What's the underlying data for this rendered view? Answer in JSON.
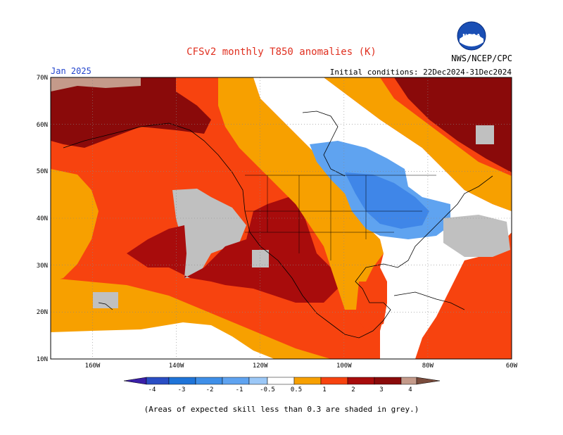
{
  "header": {
    "title": "CFSv2 monthly T850 anomalies (K)",
    "month": "Jan 2025",
    "initial_conditions": "Initial conditions: 22Dec2024-31Dec2024",
    "agency": "NWS/NCEP/CPC",
    "logo_text": "NOAA"
  },
  "map": {
    "lat_labels": [
      "70N",
      "60N",
      "50N",
      "40N",
      "30N",
      "20N",
      "10N"
    ],
    "lon_labels": [
      "160W",
      "140W",
      "120W",
      "100W",
      "80W",
      "60W"
    ],
    "lat_range": [
      10,
      70
    ],
    "lon_range": [
      -170,
      -60
    ],
    "gridlines": "dotted"
  },
  "colorbar": {
    "labels": [
      "-4",
      "-3",
      "-2",
      "-1",
      "-0.5",
      "0.5",
      "1",
      "2",
      "3",
      "4"
    ],
    "colors": [
      "#3a1fa8",
      "#1f5ccc",
      "#2f8ce6",
      "#5ea8f2",
      "#9cc8f7",
      "#ffffff",
      "#f59e0b",
      "#f26a0a",
      "#f2380a",
      "#b8100c",
      "#8f0000",
      "#c49a8a",
      "#7a4c3c"
    ]
  },
  "legend_colors": {
    "grey_low_skill": "#c0c0c0",
    "white_neutral": "#ffffff",
    "orange_0_5_1": "#f7a000",
    "orange_red_1_2": "#f7430f",
    "red_2_3": "#a80c0c",
    "darkred_3_4": "#8a0a0a",
    "light_blue_neg": "#5fa3f0",
    "blue_neg": "#3f86e8"
  },
  "footnote": "(Areas of expected skill less than 0.3 are shaded in grey.)"
}
